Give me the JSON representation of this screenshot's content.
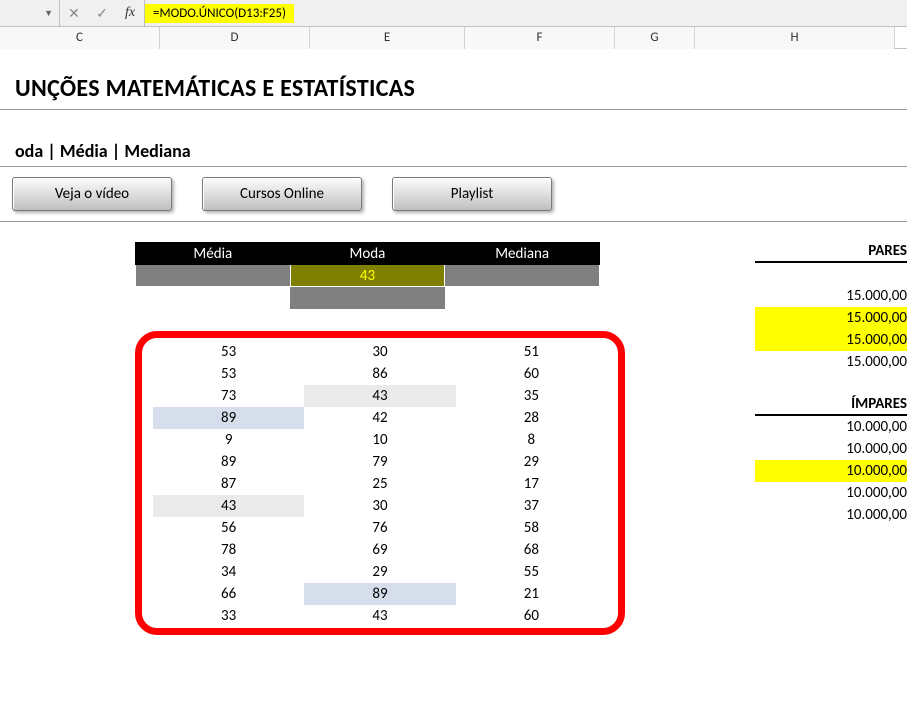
{
  "formula_bar": {
    "namebox": "",
    "formula": "=MODO.ÚNICO(D13:F25)"
  },
  "column_headers": [
    "C",
    "D",
    "E",
    "F",
    "G",
    "H"
  ],
  "title": "UNÇÕES MATEMÁTICAS E ESTATÍSTICAS",
  "subtitle": "oda | Média | Mediana",
  "buttons": [
    "Veja o vídeo",
    "Cursos Online",
    "Playlist"
  ],
  "stats": {
    "headers": [
      "Média",
      "Moda",
      "Mediana"
    ],
    "results": [
      "",
      "43",
      ""
    ],
    "selected_idx": 1
  },
  "data_rows": [
    [
      {
        "v": "53"
      },
      {
        "v": "30"
      },
      {
        "v": "51"
      }
    ],
    [
      {
        "v": "53"
      },
      {
        "v": "86"
      },
      {
        "v": "60"
      }
    ],
    [
      {
        "v": "73"
      },
      {
        "v": "43",
        "cls": "hlgrey"
      },
      {
        "v": "35"
      }
    ],
    [
      {
        "v": "89",
        "cls": "hlblue"
      },
      {
        "v": "42"
      },
      {
        "v": "28"
      }
    ],
    [
      {
        "v": "9"
      },
      {
        "v": "10"
      },
      {
        "v": "8"
      }
    ],
    [
      {
        "v": "89"
      },
      {
        "v": "79"
      },
      {
        "v": "29"
      }
    ],
    [
      {
        "v": "87"
      },
      {
        "v": "25"
      },
      {
        "v": "17"
      }
    ],
    [
      {
        "v": "43",
        "cls": "hlgrey"
      },
      {
        "v": "30"
      },
      {
        "v": "37"
      }
    ],
    [
      {
        "v": "56"
      },
      {
        "v": "76"
      },
      {
        "v": "58"
      }
    ],
    [
      {
        "v": "78"
      },
      {
        "v": "69"
      },
      {
        "v": "68"
      }
    ],
    [
      {
        "v": "34"
      },
      {
        "v": "29"
      },
      {
        "v": "55"
      }
    ],
    [
      {
        "v": "66"
      },
      {
        "v": "89",
        "cls": "hlblue"
      },
      {
        "v": "21"
      }
    ],
    [
      {
        "v": "33"
      },
      {
        "v": "43"
      },
      {
        "v": "60"
      }
    ]
  ],
  "right": {
    "pares_header": "PARES",
    "pares": [
      {
        "v": "15.000,00"
      },
      {
        "v": "15.000,00",
        "hl": true
      },
      {
        "v": "15.000,00",
        "hl": true
      },
      {
        "v": "15.000,00"
      }
    ],
    "impares_header": "ÍMPARES",
    "impares": [
      {
        "v": "10.000,00"
      },
      {
        "v": "10.000,00"
      },
      {
        "v": "10.000,00",
        "hl": true
      },
      {
        "v": "10.000,00"
      },
      {
        "v": "10.000,00"
      }
    ]
  },
  "colors": {
    "highlight_yellow": "#ffff00",
    "highlight_blue": "#d6deec",
    "highlight_grey": "#eaeaea",
    "red_border": "#ff0000",
    "dark_grey": "#808080",
    "olive": "#808000"
  }
}
